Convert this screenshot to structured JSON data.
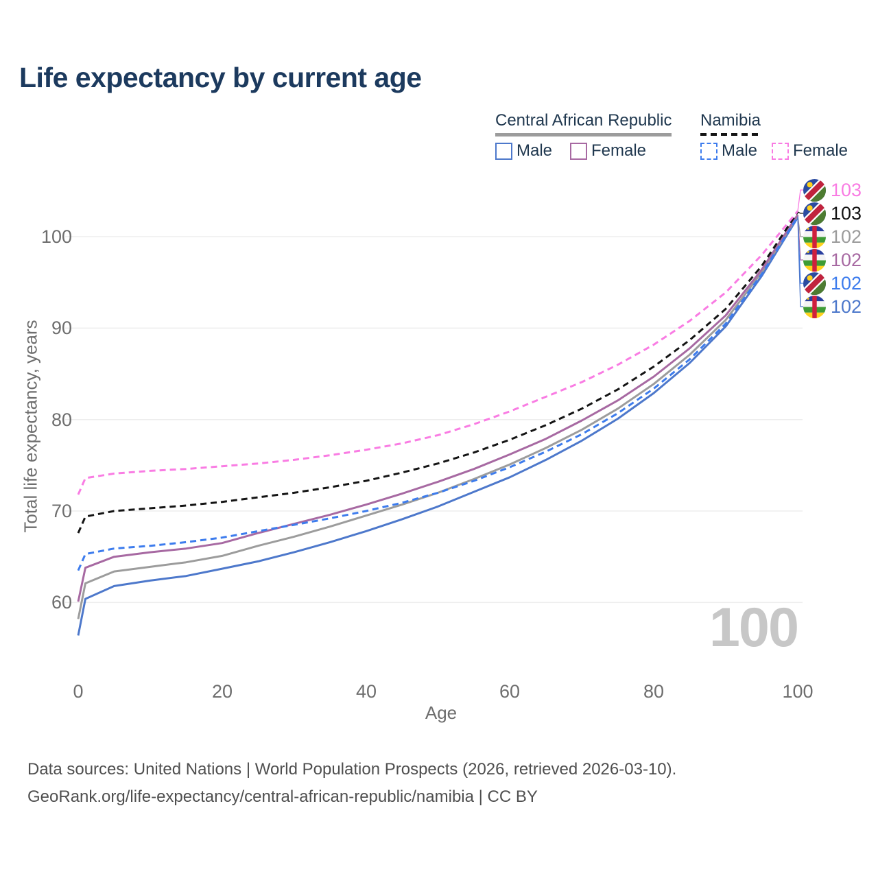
{
  "title": "Life expectancy by current age",
  "legend": {
    "groups": [
      {
        "label": "Central African Republic",
        "line_style": "solid",
        "line_color": "#9c9c9c"
      },
      {
        "label": "Namibia",
        "line_style": "dashed",
        "line_color": "#141414"
      }
    ],
    "items": [
      {
        "group": "Central African Republic",
        "label": "Male",
        "color": "#4d78cb",
        "dashed": false
      },
      {
        "group": "Central African Republic",
        "label": "Female",
        "color": "#a769a2",
        "dashed": false
      },
      {
        "group": "Namibia",
        "label": "Male",
        "color": "#3d7ced",
        "dashed": true
      },
      {
        "group": "Namibia",
        "label": "Female",
        "color": "#f97ce3",
        "dashed": true
      }
    ]
  },
  "y_axis": {
    "title": "Total life expectancy, years",
    "ticks": [
      "100",
      "90",
      "80",
      "70",
      "60"
    ]
  },
  "x_axis": {
    "title": "Age",
    "ticks": [
      "0",
      "20",
      "40",
      "60",
      "80",
      "100"
    ]
  },
  "watermark": "100",
  "chart_data": {
    "type": "line",
    "title": "Life expectancy by current age",
    "xlabel": "Age",
    "ylabel": "Total life expectancy, years",
    "xlim": [
      0,
      100
    ],
    "ylim": [
      55,
      105
    ],
    "x_ticks": [
      0,
      20,
      40,
      60,
      80,
      100
    ],
    "y_ticks": [
      60,
      70,
      80,
      90,
      100
    ],
    "grid": "horizontal",
    "legend_position": "top-right",
    "x": [
      0,
      1,
      5,
      10,
      15,
      20,
      25,
      30,
      35,
      40,
      45,
      50,
      55,
      60,
      65,
      70,
      75,
      80,
      85,
      90,
      95,
      100
    ],
    "series": [
      {
        "id": "namibia-female",
        "name": "Namibia Female",
        "color": "#f97ce3",
        "dashed": true,
        "values": [
          71.8,
          73.6,
          74.1,
          74.4,
          74.6,
          74.9,
          75.2,
          75.6,
          76.1,
          76.7,
          77.4,
          78.3,
          79.5,
          80.9,
          82.5,
          84.1,
          86.0,
          88.2,
          90.8,
          93.9,
          98.0,
          102.8
        ]
      },
      {
        "id": "namibia-total",
        "name": "Namibia",
        "color": "#141414",
        "dashed": true,
        "values": [
          67.6,
          69.4,
          70.0,
          70.3,
          70.6,
          71.0,
          71.5,
          72.0,
          72.6,
          73.3,
          74.2,
          75.2,
          76.4,
          77.8,
          79.4,
          81.2,
          83.3,
          85.8,
          88.7,
          92.1,
          96.8,
          102.7
        ]
      },
      {
        "id": "car-total",
        "name": "Central African Republic",
        "color": "#9c9c9c",
        "dashed": false,
        "values": [
          58.2,
          62.1,
          63.4,
          63.9,
          64.4,
          65.1,
          66.2,
          67.2,
          68.3,
          69.5,
          70.7,
          72.0,
          73.5,
          75.1,
          76.9,
          78.9,
          81.2,
          83.9,
          87.1,
          90.9,
          96.1,
          102.3
        ]
      },
      {
        "id": "car-female",
        "name": "Central African Republic Female",
        "color": "#a769a2",
        "dashed": false,
        "values": [
          60.1,
          63.8,
          65.0,
          65.5,
          65.9,
          66.5,
          67.6,
          68.6,
          69.6,
          70.7,
          71.9,
          73.2,
          74.6,
          76.2,
          77.9,
          79.9,
          82.1,
          84.7,
          87.8,
          91.4,
          96.4,
          102.4
        ]
      },
      {
        "id": "namibia-male",
        "name": "Namibia Male",
        "color": "#3d7ced",
        "dashed": true,
        "values": [
          63.5,
          65.3,
          65.9,
          66.2,
          66.6,
          67.1,
          67.8,
          68.5,
          69.2,
          70.0,
          70.9,
          72.0,
          73.3,
          74.8,
          76.5,
          78.4,
          80.7,
          83.4,
          86.6,
          90.5,
          95.9,
          102.2
        ]
      },
      {
        "id": "car-male",
        "name": "Central African Republic Male",
        "color": "#4d78cb",
        "dashed": false,
        "values": [
          56.4,
          60.4,
          61.8,
          62.4,
          62.9,
          63.7,
          64.5,
          65.5,
          66.6,
          67.8,
          69.1,
          70.5,
          72.1,
          73.7,
          75.6,
          77.7,
          80.1,
          82.9,
          86.2,
          90.2,
          95.7,
          102.1
        ]
      }
    ]
  },
  "end_labels": [
    {
      "value": "103",
      "color": "#f97ce3",
      "flag": "namibia",
      "series": "namibia-female"
    },
    {
      "value": "103",
      "color": "#141414",
      "flag": "namibia",
      "series": "namibia-total"
    },
    {
      "value": "102",
      "color": "#9c9c9c",
      "flag": "car",
      "series": "car-total"
    },
    {
      "value": "102",
      "color": "#a769a2",
      "flag": "car",
      "series": "car-female"
    },
    {
      "value": "102",
      "color": "#3d7ced",
      "flag": "namibia",
      "series": "namibia-male"
    },
    {
      "value": "102",
      "color": "#4d78cb",
      "flag": "car",
      "series": "car-male"
    }
  ],
  "footer": {
    "line1": "Data sources: United Nations | World Population Prospects (2026, retrieved 2026-03-10).",
    "line2": "GeoRank.org/life-expectancy/central-african-republic/namibia | CC BY"
  }
}
